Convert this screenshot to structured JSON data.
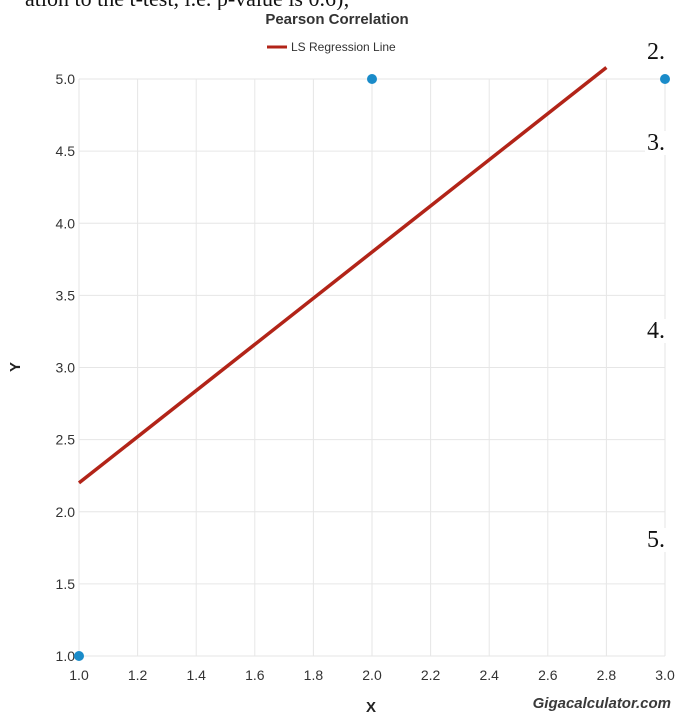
{
  "header_fragment": "ation to the t-test, i.e. p-value is 0.6);",
  "side_text": [
    "2.",
    "3.",
    "4.",
    "5."
  ],
  "watermark": "Gigacalculator.com",
  "colors": {
    "line": "#b22418",
    "point": "#1a8bc9",
    "grid": "#e6e6e6",
    "axis_text": "#333333"
  },
  "chart_data": {
    "type": "scatter",
    "title": "Pearson Correlation",
    "xlabel": "X",
    "ylabel": "Y",
    "xlim": [
      1.0,
      3.0
    ],
    "ylim": [
      1.0,
      5.0
    ],
    "x_ticks": [
      "1.0",
      "1.2",
      "1.4",
      "1.6",
      "1.8",
      "2.0",
      "2.2",
      "2.4",
      "2.6",
      "2.8",
      "3.0"
    ],
    "y_ticks": [
      "1.0",
      "1.5",
      "2.0",
      "2.5",
      "3.0",
      "3.5",
      "4.0",
      "4.5",
      "5.0"
    ],
    "grid": true,
    "legend_position": "top-center",
    "points": [
      {
        "x": 1.0,
        "y": 1.0
      },
      {
        "x": 2.0,
        "y": 5.0
      },
      {
        "x": 3.0,
        "y": 5.0
      }
    ],
    "regression_line": {
      "name": "LS Regression Line",
      "x": [
        1.0,
        2.8
      ],
      "y": [
        2.2,
        5.08
      ]
    }
  }
}
